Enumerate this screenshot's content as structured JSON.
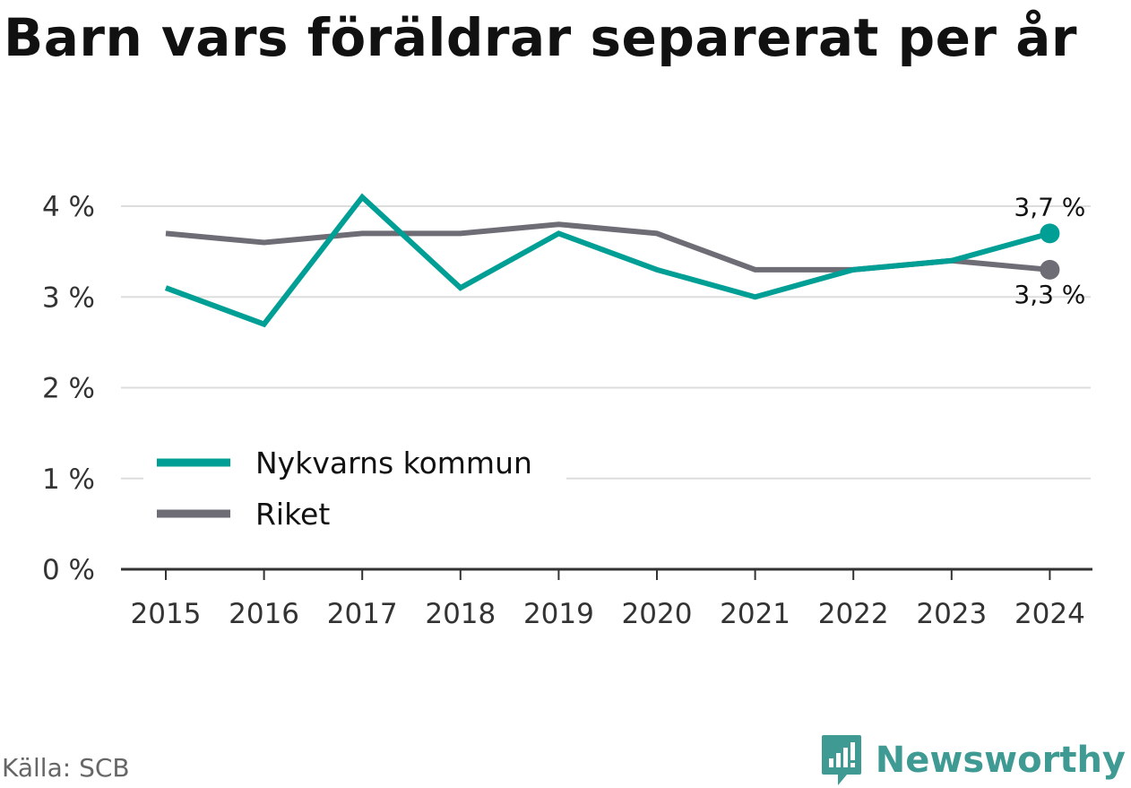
{
  "title": "Barn vars föräldrar separerat per år",
  "source": "Källa: SCB",
  "brand": {
    "name": "Newsworthy"
  },
  "colors": {
    "nykvarn": "#009f96",
    "riket": "#6e6d76",
    "grid": "#dddddd",
    "axis": "#333333",
    "brand": "#3f9a94"
  },
  "chart_data": {
    "type": "line",
    "x": [
      "2015",
      "2016",
      "2017",
      "2018",
      "2019",
      "2020",
      "2021",
      "2022",
      "2023",
      "2024"
    ],
    "ylim": [
      0,
      4
    ],
    "yticks": [
      "0 %",
      "1 %",
      "2 %",
      "3 %",
      "4 %"
    ],
    "grid": true,
    "legend_position": "bottom-left",
    "series": [
      {
        "name": "Nykvarns kommun",
        "values": [
          3.1,
          2.7,
          4.1,
          3.1,
          3.7,
          3.3,
          3.0,
          3.3,
          3.4,
          3.7
        ],
        "end_label": "3,7 %"
      },
      {
        "name": "Riket",
        "values": [
          3.7,
          3.6,
          3.7,
          3.7,
          3.8,
          3.7,
          3.3,
          3.3,
          3.4,
          3.3
        ],
        "end_label": "3,3 %"
      }
    ]
  }
}
